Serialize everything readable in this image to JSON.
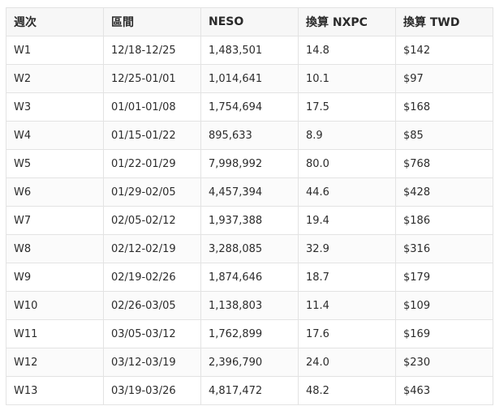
{
  "table": {
    "headers": [
      "週次",
      "區間",
      "NESO",
      "換算 NXPC",
      "換算 TWD"
    ],
    "rows": [
      [
        "W1",
        "12/18-12/25",
        "1,483,501",
        "14.8",
        "$142"
      ],
      [
        "W2",
        "12/25-01/01",
        "1,014,641",
        "10.1",
        "$97"
      ],
      [
        "W3",
        "01/01-01/08",
        "1,754,694",
        "17.5",
        "$168"
      ],
      [
        "W4",
        "01/15-01/22",
        "895,633",
        "8.9",
        "$85"
      ],
      [
        "W5",
        "01/22-01/29",
        "7,998,992",
        "80.0",
        "$768"
      ],
      [
        "W6",
        "01/29-02/05",
        "4,457,394",
        "44.6",
        "$428"
      ],
      [
        "W7",
        "02/05-02/12",
        "1,937,388",
        "19.4",
        "$186"
      ],
      [
        "W8",
        "02/12-02/19",
        "3,288,085",
        "32.9",
        "$316"
      ],
      [
        "W9",
        "02/19-02/26",
        "1,874,646",
        "18.7",
        "$179"
      ],
      [
        "W10",
        "02/26-03/05",
        "1,138,803",
        "11.4",
        "$109"
      ],
      [
        "W11",
        "03/05-03/12",
        "1,762,899",
        "17.6",
        "$169"
      ],
      [
        "W12",
        "03/12-03/19",
        "2,396,790",
        "24.0",
        "$230"
      ],
      [
        "W13",
        "03/19-03/26",
        "4,817,472",
        "48.2",
        "$463"
      ]
    ]
  }
}
